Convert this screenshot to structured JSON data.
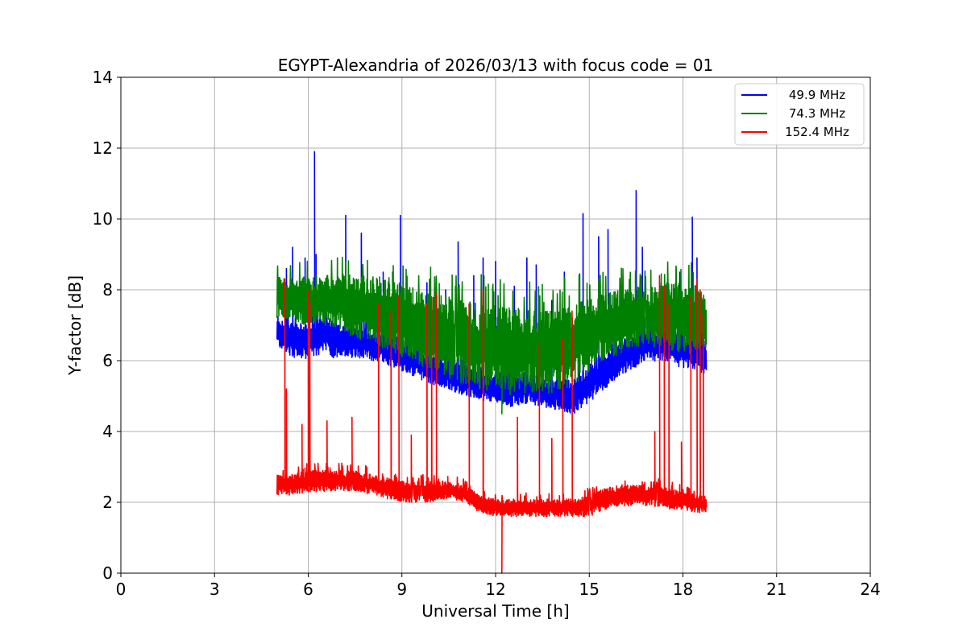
{
  "chart_data": {
    "type": "line",
    "title": "EGYPT-Alexandria of 2026/03/13 with focus code = 01",
    "xlabel": "Universal Time [h]",
    "ylabel": "Y-factor [dB]",
    "xlim": [
      0,
      24
    ],
    "ylim": [
      0,
      14
    ],
    "xticks": [
      0,
      3,
      6,
      9,
      12,
      15,
      18,
      21,
      24
    ],
    "yticks": [
      0,
      2,
      4,
      6,
      8,
      10,
      12,
      14
    ],
    "grid": true,
    "legend_position": "top-right",
    "series": [
      {
        "name": "49.9 MHz",
        "color": "#0000ff",
        "x": [
          5.0,
          5.5,
          6.0,
          6.5,
          7.0,
          7.5,
          8.0,
          8.5,
          9.0,
          9.5,
          10.0,
          10.5,
          11.0,
          11.5,
          12.0,
          12.5,
          13.0,
          13.5,
          14.0,
          14.5,
          15.0,
          15.5,
          16.0,
          16.5,
          17.0,
          17.5,
          18.0,
          18.5,
          18.75
        ],
        "lower": [
          6.4,
          6.1,
          6.0,
          6.2,
          6.0,
          6.1,
          6.0,
          5.9,
          5.7,
          5.5,
          5.3,
          5.2,
          5.0,
          4.9,
          4.8,
          4.7,
          4.8,
          4.7,
          4.6,
          4.5,
          4.8,
          5.2,
          5.6,
          5.8,
          6.0,
          5.9,
          5.8,
          5.7,
          5.6
        ],
        "upper": [
          7.3,
          7.1,
          7.0,
          7.3,
          7.0,
          7.0,
          6.9,
          6.8,
          6.6,
          6.4,
          6.1,
          6.0,
          5.9,
          5.8,
          5.7,
          5.6,
          5.7,
          5.5,
          5.5,
          5.5,
          5.9,
          6.3,
          6.6,
          6.8,
          7.0,
          6.9,
          6.8,
          6.7,
          6.5
        ],
        "spikes": [
          [
            5.3,
            8.6
          ],
          [
            5.5,
            9.2
          ],
          [
            5.9,
            8.9
          ],
          [
            6.2,
            11.9
          ],
          [
            6.25,
            9.0
          ],
          [
            7.2,
            10.1
          ],
          [
            7.7,
            9.6
          ],
          [
            8.4,
            8.5
          ],
          [
            8.95,
            10.1
          ],
          [
            9.8,
            8.2
          ],
          [
            10.4,
            8.0
          ],
          [
            10.8,
            9.35
          ],
          [
            11.3,
            8.4
          ],
          [
            11.6,
            8.9
          ],
          [
            12.0,
            8.8
          ],
          [
            12.6,
            8.1
          ],
          [
            13.0,
            8.9
          ],
          [
            13.3,
            8.7
          ],
          [
            13.8,
            7.7
          ],
          [
            14.2,
            8.5
          ],
          [
            14.8,
            10.15
          ],
          [
            15.3,
            9.5
          ],
          [
            15.6,
            9.7
          ],
          [
            16.5,
            10.8
          ],
          [
            16.7,
            9.2
          ],
          [
            17.3,
            8.2
          ],
          [
            17.9,
            8.5
          ],
          [
            18.3,
            10.05
          ],
          [
            18.45,
            8.9
          ]
        ]
      },
      {
        "name": "74.3 MHz",
        "color": "#008000",
        "x": [
          5.0,
          5.5,
          6.0,
          6.5,
          7.0,
          7.5,
          8.0,
          8.5,
          9.0,
          9.5,
          10.0,
          10.5,
          11.0,
          11.5,
          12.0,
          12.5,
          13.0,
          13.5,
          14.0,
          14.5,
          15.0,
          15.5,
          16.0,
          16.5,
          17.0,
          17.5,
          18.0,
          18.5,
          18.75
        ],
        "lower": [
          7.2,
          7.1,
          7.0,
          7.0,
          6.9,
          6.6,
          6.5,
          6.3,
          6.1,
          5.9,
          5.6,
          5.5,
          5.3,
          5.2,
          5.1,
          5.0,
          5.1,
          5.0,
          5.1,
          5.3,
          5.7,
          6.0,
          6.2,
          6.4,
          6.4,
          6.3,
          6.2,
          6.2,
          6.2
        ],
        "upper": [
          8.4,
          8.3,
          8.4,
          8.4,
          8.5,
          8.4,
          8.4,
          8.4,
          8.2,
          8.0,
          7.9,
          7.8,
          7.7,
          7.6,
          7.6,
          7.5,
          7.5,
          7.4,
          7.5,
          7.6,
          7.8,
          7.9,
          8.0,
          8.1,
          8.1,
          8.2,
          8.2,
          8.1,
          7.9
        ],
        "spikes": [
          [
            7.2,
            8.8
          ],
          [
            8.7,
            8.5
          ],
          [
            12.2,
            4.5
          ]
        ]
      },
      {
        "name": "152.4 MHz",
        "color": "#ff0000",
        "x": [
          5.0,
          5.5,
          6.0,
          6.5,
          7.0,
          7.5,
          8.0,
          8.5,
          9.0,
          9.5,
          10.0,
          10.5,
          11.0,
          11.5,
          12.0,
          12.5,
          13.0,
          13.5,
          14.0,
          14.5,
          15.0,
          15.5,
          16.0,
          16.5,
          17.0,
          17.5,
          18.0,
          18.5,
          18.75
        ],
        "lower": [
          2.2,
          2.2,
          2.3,
          2.3,
          2.3,
          2.3,
          2.2,
          2.1,
          2.0,
          2.0,
          2.0,
          2.1,
          2.0,
          1.7,
          1.6,
          1.6,
          1.6,
          1.6,
          1.6,
          1.6,
          1.6,
          1.8,
          1.9,
          1.9,
          1.9,
          1.8,
          1.8,
          1.7,
          1.7
        ],
        "upper": [
          2.8,
          2.8,
          2.9,
          2.9,
          2.9,
          2.9,
          2.8,
          2.7,
          2.6,
          2.6,
          2.6,
          2.6,
          2.5,
          2.2,
          2.1,
          2.1,
          2.1,
          2.1,
          2.1,
          2.1,
          2.2,
          2.4,
          2.5,
          2.5,
          2.5,
          2.4,
          2.3,
          2.2,
          2.2
        ],
        "spikes": [
          [
            5.25,
            8.3
          ],
          [
            5.3,
            5.2
          ],
          [
            5.8,
            4.2
          ],
          [
            6.0,
            8.0
          ],
          [
            6.05,
            7.6
          ],
          [
            6.6,
            4.3
          ],
          [
            7.4,
            4.4
          ],
          [
            8.25,
            7.6
          ],
          [
            8.65,
            7.4
          ],
          [
            8.9,
            7.8
          ],
          [
            9.3,
            3.9
          ],
          [
            9.8,
            7.6
          ],
          [
            9.95,
            7.8
          ],
          [
            10.1,
            7.9
          ],
          [
            11.15,
            7.6
          ],
          [
            11.6,
            8.0
          ],
          [
            12.2,
            0.0
          ],
          [
            12.7,
            4.4
          ],
          [
            13.4,
            6.5
          ],
          [
            13.8,
            3.8
          ],
          [
            14.15,
            6.6
          ],
          [
            14.45,
            7.4
          ],
          [
            17.1,
            4.0
          ],
          [
            17.25,
            8.4
          ],
          [
            17.4,
            8.1
          ],
          [
            17.55,
            7.6
          ],
          [
            17.95,
            3.7
          ],
          [
            18.25,
            7.8
          ],
          [
            18.45,
            8.3
          ],
          [
            18.55,
            8.0
          ],
          [
            18.65,
            7.3
          ]
        ]
      }
    ]
  }
}
